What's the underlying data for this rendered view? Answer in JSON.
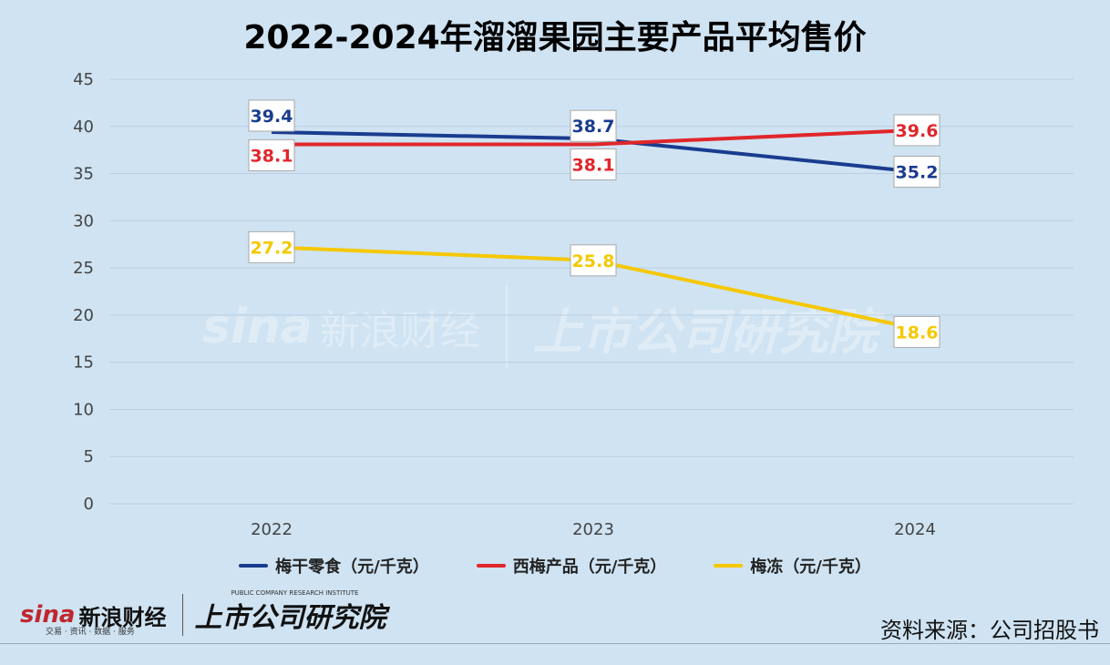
{
  "chart_data": {
    "type": "line",
    "title": "2022-2024年溜溜果园主要产品平均售价",
    "categories": [
      "2022",
      "2023",
      "2024"
    ],
    "ylim": [
      0,
      45
    ],
    "yticks": [
      0,
      5,
      10,
      15,
      20,
      25,
      30,
      35,
      40,
      45
    ],
    "grid": true,
    "legend_position": "bottom",
    "series": [
      {
        "name": "梅干零食（元/千克）",
        "values": [
          39.4,
          38.7,
          35.2
        ],
        "color": "#1a3c8f",
        "labels": [
          "39.4",
          "38.7",
          "35.2"
        ]
      },
      {
        "name": "西梅产品（元/千克）",
        "values": [
          38.1,
          38.1,
          39.6
        ],
        "color": "#e0262b",
        "labels": [
          "38.1",
          "38.1",
          "39.6"
        ]
      },
      {
        "name": "梅冻（元/千克）",
        "values": [
          27.2,
          25.8,
          18.6
        ],
        "color": "#f5c800",
        "labels": [
          "27.2",
          "25.8",
          "18.6"
        ]
      }
    ]
  },
  "footer": {
    "source": "资料来源：公司招股书",
    "logo_sina": "sina",
    "logo_cn": "新浪财经",
    "logo_sub": "交易 · 资讯 · 数据 · 服务",
    "logo_inst": "上市公司研究院",
    "logo_inst_en": "PUBLIC COMPANY RESEARCH INSTITUTE"
  }
}
